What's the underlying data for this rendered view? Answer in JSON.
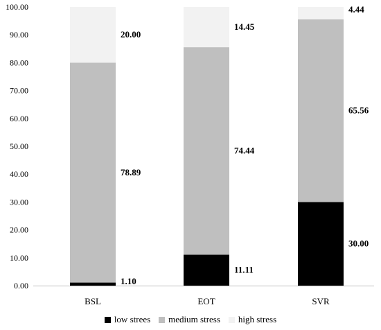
{
  "chart_data": {
    "type": "bar",
    "stacked": true,
    "categories": [
      "BSL",
      "EOT",
      "SVR"
    ],
    "series": [
      {
        "name": "low strees",
        "color": "#000000",
        "values": [
          1.1,
          11.11,
          30.0
        ],
        "labels": [
          "1.10",
          "11.11",
          "30.00"
        ]
      },
      {
        "name": "medium stress",
        "color": "#bfbfbf",
        "values": [
          78.89,
          74.44,
          65.56
        ],
        "labels": [
          "78.89",
          "74.44",
          "65.56"
        ]
      },
      {
        "name": "high stress",
        "color": "#f2f2f2",
        "values": [
          20.0,
          14.45,
          4.44
        ],
        "labels": [
          "20.00",
          "14.45",
          "4.44"
        ]
      }
    ],
    "ylim": [
      0,
      100
    ],
    "yticks": [
      "0.00",
      "10.00",
      "20.00",
      "30.00",
      "40.00",
      "50.00",
      "60.00",
      "70.00",
      "80.00",
      "90.00",
      "100.00"
    ],
    "grid": false,
    "legend_position": "bottom"
  }
}
